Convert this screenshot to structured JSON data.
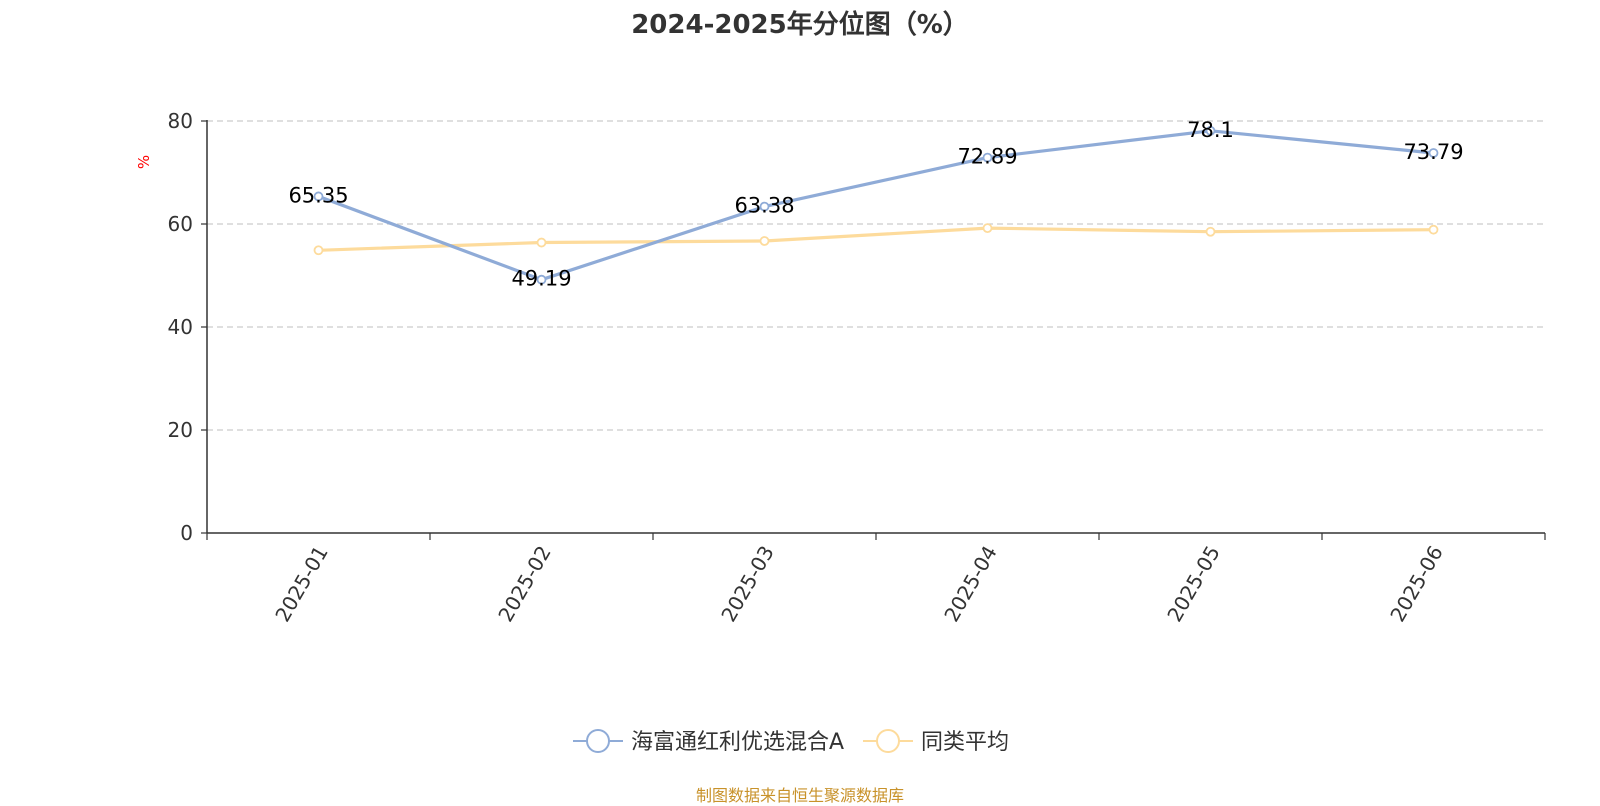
{
  "chart_data": {
    "type": "line",
    "title": "2024-2025年分位图（%）",
    "ylabel": "%",
    "xlabel": "",
    "categories": [
      "2025-01",
      "2025-02",
      "2025-03",
      "2025-04",
      "2025-05",
      "2025-06"
    ],
    "ylim": [
      0,
      80
    ],
    "yticks": [
      0,
      20,
      40,
      60,
      80
    ],
    "grid": true,
    "legend_position": "bottom-center",
    "series": [
      {
        "name": "海富通红利优选混合A",
        "color": "#8fabd7",
        "values": [
          65.35,
          49.19,
          63.38,
          72.89,
          78.1,
          73.79
        ],
        "data_labels": [
          "65.35",
          "49.19",
          "63.38",
          "72.89",
          "78.1",
          "73.79"
        ]
      },
      {
        "name": "同类平均",
        "color": "#fddb9c",
        "values": [
          54.9,
          56.4,
          56.7,
          59.2,
          58.5,
          58.9
        ],
        "data_labels": []
      }
    ]
  },
  "colors": {
    "ylabel": "#ff0000",
    "source": "#c8922a",
    "axis": "#333333",
    "grid": "#cccccc"
  },
  "source_note": "制图数据来自恒生聚源数据库"
}
